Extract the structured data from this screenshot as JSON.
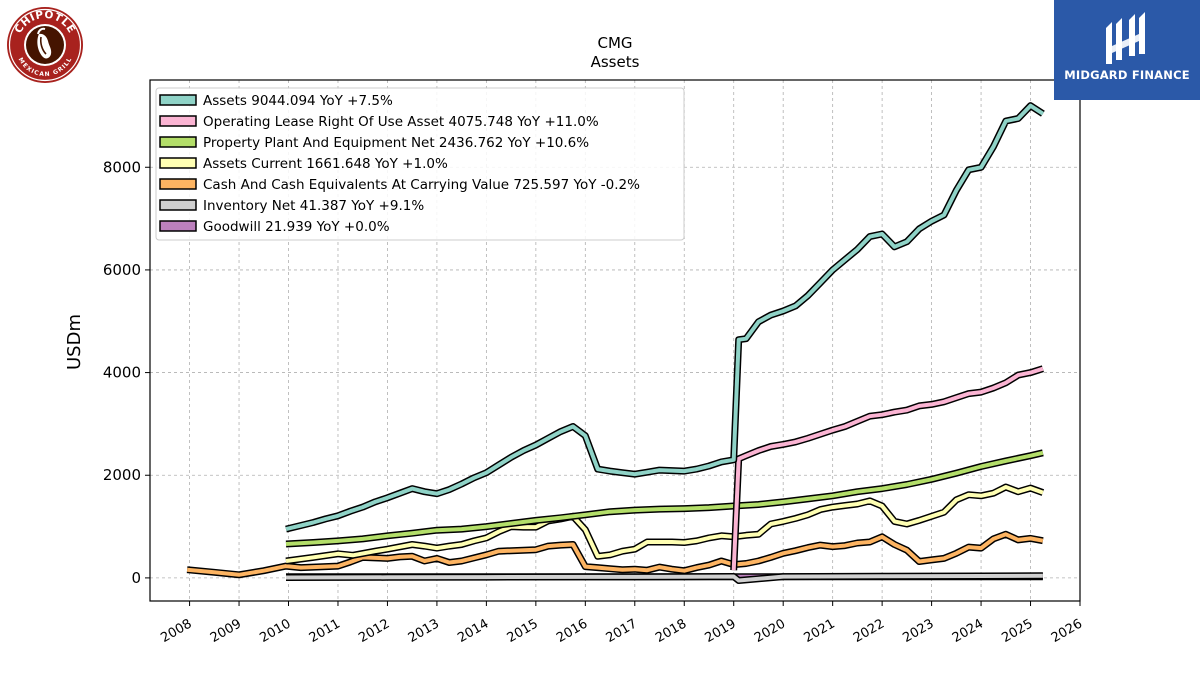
{
  "logos": {
    "left_text_top": "CHIPOTLE",
    "left_text_bottom": "MEXICAN GRILL",
    "right_brand": "MIDGARD FINANCE"
  },
  "chart_data": {
    "type": "line",
    "title": "CMG",
    "subtitle": "Assets",
    "xlabel": "",
    "ylabel": "USDm",
    "xlim": [
      2007.2,
      2026.0
    ],
    "ylim": [
      -450,
      9700
    ],
    "xticks": [
      2008,
      2009,
      2010,
      2011,
      2012,
      2013,
      2014,
      2015,
      2016,
      2017,
      2018,
      2019,
      2020,
      2021,
      2022,
      2023,
      2024,
      2025,
      2026
    ],
    "yticks": [
      0,
      2000,
      4000,
      6000,
      8000
    ],
    "grid": true,
    "legend_position": "top-left",
    "series": [
      {
        "name": "Assets  9044.094 YoY +7.5%",
        "color": "#8fd3c7",
        "x": [
          2009.95,
          2010.25,
          2010.5,
          2010.75,
          2011.0,
          2011.25,
          2011.5,
          2011.75,
          2012.0,
          2012.25,
          2012.5,
          2012.75,
          2013.0,
          2013.25,
          2013.5,
          2013.75,
          2014.0,
          2014.25,
          2014.5,
          2014.75,
          2015.0,
          2015.25,
          2015.5,
          2015.75,
          2016.0,
          2016.25,
          2016.5,
          2016.75,
          2017.0,
          2017.25,
          2017.5,
          2017.75,
          2018.0,
          2018.25,
          2018.5,
          2018.75,
          2019.0,
          2019.1,
          2019.25,
          2019.5,
          2019.75,
          2020.0,
          2020.25,
          2020.5,
          2020.75,
          2021.0,
          2021.25,
          2021.5,
          2021.75,
          2022.0,
          2022.25,
          2022.5,
          2022.75,
          2023.0,
          2023.25,
          2023.5,
          2023.75,
          2024.0,
          2024.25,
          2024.5,
          2024.75,
          2025.0,
          2025.25
        ],
        "y": [
          950,
          1020,
          1080,
          1150,
          1210,
          1300,
          1380,
          1480,
          1560,
          1650,
          1740,
          1680,
          1640,
          1720,
          1830,
          1950,
          2050,
          2200,
          2350,
          2480,
          2590,
          2720,
          2850,
          2950,
          2770,
          2120,
          2080,
          2050,
          2020,
          2060,
          2100,
          2090,
          2080,
          2120,
          2180,
          2260,
          2300,
          4640,
          4660,
          4990,
          5120,
          5200,
          5300,
          5500,
          5750,
          6000,
          6200,
          6400,
          6650,
          6700,
          6450,
          6550,
          6800,
          6950,
          7070,
          7550,
          7950,
          8000,
          8400,
          8900,
          8950,
          9200,
          9044.094
        ]
      },
      {
        "name": "Operating Lease Right Of Use Asset  4075.748 YoY +11.0%",
        "color": "#fbb4d3",
        "x": [
          2019.0,
          2019.1,
          2019.25,
          2019.5,
          2019.75,
          2020.0,
          2020.25,
          2020.5,
          2020.75,
          2021.0,
          2021.25,
          2021.5,
          2021.75,
          2022.0,
          2022.25,
          2022.5,
          2022.75,
          2023.0,
          2023.25,
          2023.5,
          2023.75,
          2024.0,
          2024.25,
          2024.5,
          2024.75,
          2025.0,
          2025.25
        ],
        "y": [
          150,
          2320,
          2380,
          2480,
          2560,
          2600,
          2650,
          2720,
          2800,
          2880,
          2950,
          3050,
          3150,
          3180,
          3230,
          3270,
          3350,
          3380,
          3430,
          3510,
          3590,
          3620,
          3700,
          3800,
          3950,
          4000,
          4075.748
        ]
      },
      {
        "name": "Property Plant And Equipment Net  2436.762 YoY +10.6%",
        "color": "#b3de69",
        "x": [
          2009.95,
          2010.5,
          2011.0,
          2011.5,
          2012.0,
          2012.5,
          2013.0,
          2013.5,
          2014.0,
          2014.5,
          2015.0,
          2015.5,
          2016.0,
          2016.5,
          2017.0,
          2017.5,
          2018.0,
          2018.5,
          2019.0,
          2019.5,
          2020.0,
          2020.5,
          2021.0,
          2021.5,
          2022.0,
          2022.5,
          2023.0,
          2023.5,
          2024.0,
          2024.5,
          2025.0,
          2025.25
        ],
        "y": [
          660,
          690,
          720,
          760,
          820,
          870,
          930,
          950,
          1000,
          1060,
          1120,
          1170,
          1230,
          1290,
          1320,
          1340,
          1350,
          1370,
          1400,
          1430,
          1480,
          1540,
          1600,
          1680,
          1740,
          1820,
          1920,
          2040,
          2170,
          2280,
          2380,
          2436.762
        ]
      },
      {
        "name": "Assets Current  1661.648 YoY +1.0%",
        "color": "#ffffb3",
        "x": [
          2009.95,
          2010.5,
          2011.0,
          2011.3,
          2011.75,
          2012.0,
          2012.5,
          2012.75,
          2013.0,
          2013.25,
          2013.5,
          2013.75,
          2014.0,
          2014.25,
          2014.5,
          2014.75,
          2015.0,
          2015.25,
          2015.5,
          2015.75,
          2016.0,
          2016.25,
          2016.5,
          2016.75,
          2017.0,
          2017.25,
          2017.5,
          2017.75,
          2018.0,
          2018.25,
          2018.5,
          2018.75,
          2019.0,
          2019.25,
          2019.5,
          2019.75,
          2020.0,
          2020.25,
          2020.5,
          2020.75,
          2021.0,
          2021.25,
          2021.5,
          2021.75,
          2022.0,
          2022.25,
          2022.5,
          2022.75,
          2023.0,
          2023.25,
          2023.5,
          2023.75,
          2024.0,
          2024.25,
          2024.5,
          2024.75,
          2025.0,
          2025.25
        ],
        "y": [
          330,
          400,
          470,
          440,
          520,
          560,
          650,
          620,
          580,
          620,
          650,
          720,
          780,
          900,
          1000,
          990,
          990,
          1110,
          1150,
          1200,
          940,
          420,
          450,
          520,
          560,
          700,
          700,
          700,
          690,
          720,
          780,
          820,
          800,
          830,
          850,
          1050,
          1100,
          1160,
          1230,
          1330,
          1380,
          1410,
          1440,
          1500,
          1400,
          1100,
          1050,
          1120,
          1200,
          1280,
          1520,
          1620,
          1600,
          1650,
          1770,
          1680,
          1750,
          1661.648
        ]
      },
      {
        "name": "Cash And Cash Equivalents At Carrying Value  725.597 YoY -0.2%",
        "color": "#fdb462",
        "x": [
          2007.95,
          2008.5,
          2009.0,
          2009.5,
          2009.95,
          2010.25,
          2010.5,
          2010.75,
          2011.0,
          2011.25,
          2011.5,
          2011.75,
          2012.0,
          2012.25,
          2012.5,
          2012.75,
          2013.0,
          2013.25,
          2013.5,
          2013.75,
          2014.0,
          2014.25,
          2014.5,
          2014.75,
          2015.0,
          2015.25,
          2015.5,
          2015.75,
          2016.0,
          2016.25,
          2016.5,
          2016.75,
          2017.0,
          2017.25,
          2017.5,
          2017.75,
          2018.0,
          2018.25,
          2018.5,
          2018.75,
          2019.0,
          2019.25,
          2019.5,
          2019.75,
          2020.0,
          2020.25,
          2020.5,
          2020.75,
          2021.0,
          2021.25,
          2021.5,
          2021.75,
          2022.0,
          2022.25,
          2022.5,
          2022.75,
          2023.0,
          2023.25,
          2023.5,
          2023.75,
          2024.0,
          2024.25,
          2024.5,
          2024.75,
          2025.0,
          2025.25
        ],
        "y": [
          160,
          110,
          60,
          140,
          230,
          200,
          210,
          220,
          230,
          310,
          400,
          390,
          380,
          410,
          420,
          330,
          380,
          300,
          330,
          390,
          450,
          520,
          530,
          540,
          550,
          620,
          640,
          650,
          220,
          200,
          180,
          160,
          170,
          150,
          210,
          170,
          140,
          200,
          250,
          330,
          260,
          280,
          330,
          400,
          480,
          530,
          590,
          640,
          610,
          630,
          680,
          700,
          800,
          650,
          540,
          320,
          350,
          380,
          480,
          600,
          580,
          760,
          850,
          740,
          770,
          725.597
        ]
      },
      {
        "name": "Inventory Net  41.387 YoY +9.1%",
        "color": "#d0d0d0",
        "x": [
          2009.95,
          2012.0,
          2014.0,
          2016.0,
          2018.0,
          2019.0,
          2019.1,
          2020.0,
          2022.0,
          2024.0,
          2025.25
        ],
        "y": [
          8,
          12,
          15,
          19,
          22,
          27,
          -50,
          25,
          32,
          38,
          41.387
        ]
      },
      {
        "name": "Goodwill  21.939 YoY +0.0%",
        "color": "#bc80bd",
        "x": [
          2009.95,
          2025.25
        ],
        "y": [
          21.939,
          21.939
        ]
      }
    ]
  }
}
